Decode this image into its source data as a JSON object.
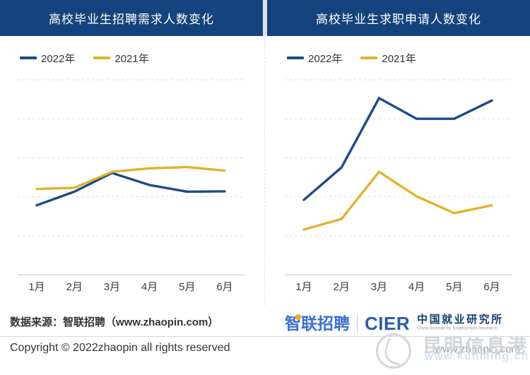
{
  "chart_data": [
    {
      "type": "line",
      "title": "高校毕业生招聘需求人数变化",
      "categories": [
        "1月",
        "2月",
        "3月",
        "4月",
        "5月",
        "6月"
      ],
      "series": [
        {
          "name": "2022年",
          "color": "#1b4b87",
          "values": [
            1.78,
            2.13,
            2.61,
            2.3,
            2.13,
            2.14
          ]
        },
        {
          "name": "2021年",
          "color": "#e0b32b",
          "values": [
            2.2,
            2.23,
            2.64,
            2.73,
            2.76,
            2.67
          ]
        }
      ],
      "xlabel": "",
      "ylabel": "",
      "y_axis_labels_shown": false,
      "y_units": "relative index estimated from unlabeled gridlines (0–5)",
      "ylim": [
        0,
        5
      ],
      "grid": "horizontal dashed, 5 lines",
      "legend_position": "top-left"
    },
    {
      "type": "line",
      "title": "高校毕业生求职申请人数变化",
      "categories": [
        "1月",
        "2月",
        "3月",
        "4月",
        "5月",
        "6月"
      ],
      "series": [
        {
          "name": "2022年",
          "color": "#1b4b87",
          "values": [
            1.92,
            2.75,
            4.53,
            4.0,
            4.0,
            4.47
          ]
        },
        {
          "name": "2021年",
          "color": "#e0b32b",
          "values": [
            1.16,
            1.43,
            2.64,
            2.01,
            1.58,
            1.78
          ]
        }
      ],
      "xlabel": "",
      "ylabel": "",
      "y_axis_labels_shown": false,
      "y_units": "relative index estimated from unlabeled gridlines (0–5)",
      "ylim": [
        0,
        5
      ],
      "grid": "horizontal dashed, 5 lines",
      "legend_position": "top-left"
    }
  ],
  "footer": {
    "source_label": "数据来源：智联招聘（www.zhaopin.com）",
    "copyright": "Copyright ©  2022zhaopin all rights reserved",
    "website": "www.zhaopin.com",
    "zhaopin_logo_text": "智联招聘",
    "cier_logo_text": "CIER",
    "cier_cn_text": "中国就业研究所",
    "cier_en_text": "China Institute for Employment Research"
  },
  "watermark": {
    "text": "昆明信息港",
    "url": "www.kunming.cn"
  },
  "colors": {
    "banner": "#14437d",
    "series_2022": "#1b4b87",
    "series_2021": "#e0b32b",
    "gridline": "#d8d8d8",
    "axis": "#cfcfcf"
  }
}
